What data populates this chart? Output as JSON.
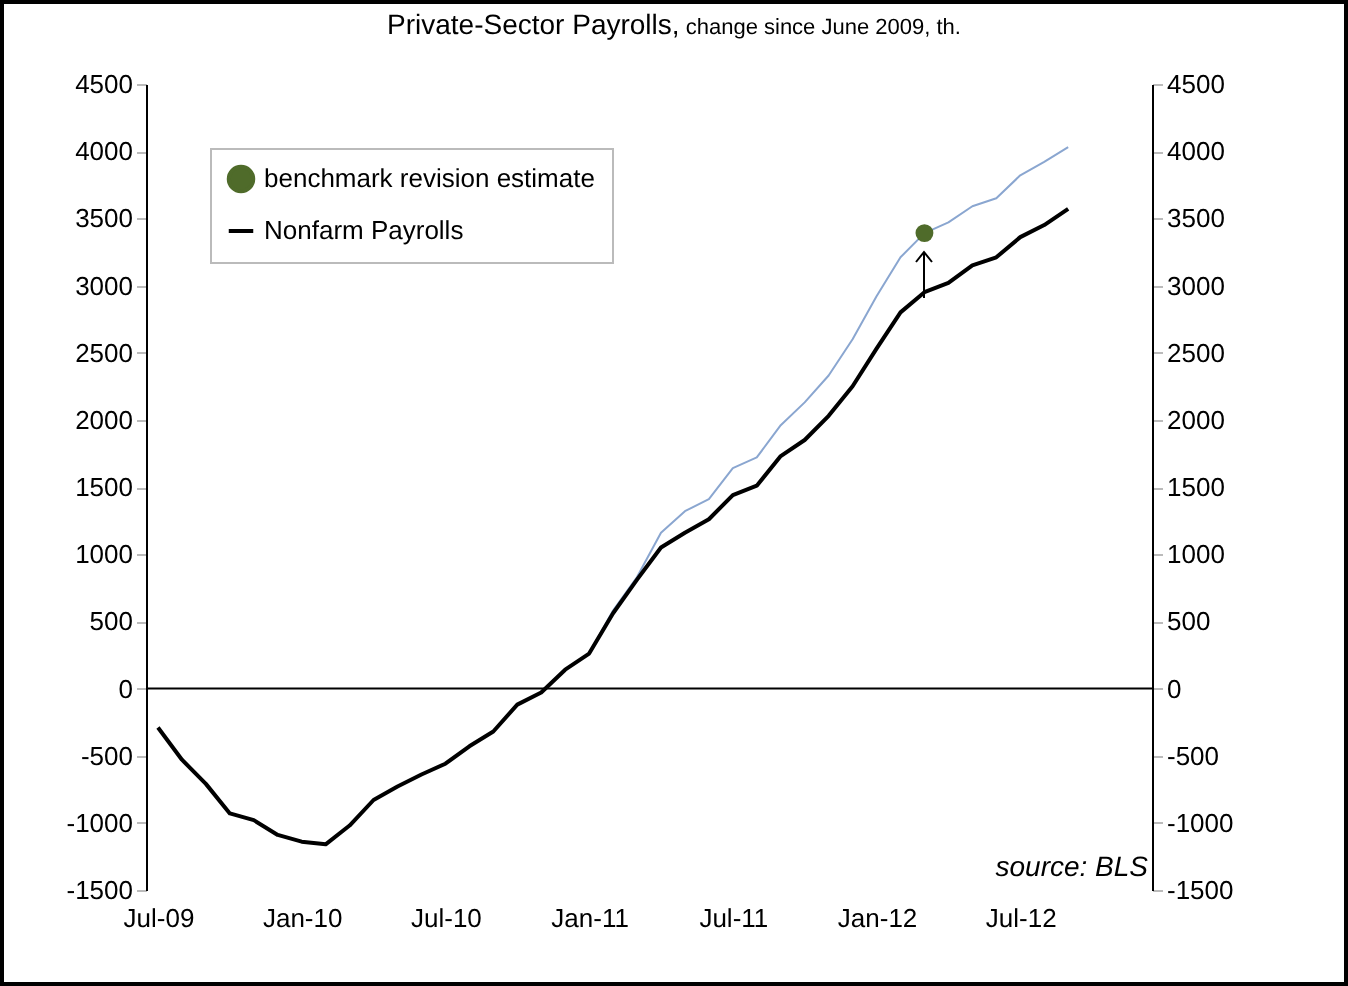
{
  "chart_data": {
    "type": "line",
    "title": "Private-Sector Payrolls,",
    "subtitle": "change since June 2009, th.",
    "categories": [
      "Jul-09",
      null,
      null,
      null,
      null,
      null,
      "Jan-10",
      null,
      null,
      null,
      null,
      null,
      "Jul-10",
      null,
      null,
      null,
      null,
      null,
      "Jan-11",
      null,
      null,
      null,
      null,
      null,
      "Jul-11",
      null,
      null,
      null,
      null,
      null,
      "Jan-12",
      null,
      null,
      null,
      null,
      null,
      "Jul-12",
      null,
      null,
      null,
      null,
      null
    ],
    "series": [
      {
        "color": "#8aa6d0",
        "values": [
          null,
          null,
          null,
          null,
          null,
          null,
          null,
          null,
          null,
          null,
          null,
          null,
          null,
          null,
          null,
          null,
          null,
          null,
          260,
          580,
          830,
          1160,
          1320,
          1410,
          1640,
          1720,
          1960,
          2130,
          2330,
          2600,
          2920,
          3210,
          3390,
          3470,
          3590,
          3650,
          3820,
          3920,
          4030,
          null,
          null,
          null
        ]
      },
      {
        "name": "benchmark revision estimate",
        "type": "scatter",
        "color": "#4f6b2a",
        "values": [
          null,
          null,
          null,
          null,
          null,
          null,
          null,
          null,
          null,
          null,
          null,
          null,
          null,
          null,
          null,
          null,
          null,
          null,
          null,
          null,
          null,
          null,
          null,
          null,
          null,
          null,
          null,
          null,
          null,
          null,
          null,
          null,
          3390,
          null,
          null,
          null,
          null,
          null,
          null,
          null,
          null,
          null
        ]
      },
      {
        "name": "Nonfarm Payrolls",
        "color": "#000000",
        "values": [
          -290,
          -530,
          -710,
          -930,
          -980,
          -1090,
          -1140,
          -1160,
          -1020,
          -830,
          -730,
          -640,
          -560,
          -430,
          -320,
          -120,
          -30,
          140,
          260,
          560,
          810,
          1050,
          1160,
          1260,
          1440,
          1510,
          1730,
          1850,
          2030,
          2250,
          2530,
          2800,
          2950,
          3020,
          3150,
          3210,
          3360,
          3450,
          3570,
          null,
          null,
          null
        ]
      }
    ],
    "ylim": [
      -1500,
      4500
    ],
    "yticks": [
      -1500,
      -1000,
      -500,
      0,
      500,
      1000,
      1500,
      2000,
      2500,
      3000,
      3500,
      4000,
      4500
    ],
    "y2lim": [
      -1500,
      4500
    ],
    "y2ticks": [
      -1500,
      -1000,
      -500,
      0,
      500,
      1000,
      1500,
      2000,
      2500,
      3000,
      3500,
      4000,
      4500
    ],
    "ref_lines": [
      {
        "axis": "y",
        "value": 0,
        "color": "#000000"
      }
    ],
    "annotations": [
      "source: BLS"
    ],
    "legend": "top left",
    "grid": false
  }
}
